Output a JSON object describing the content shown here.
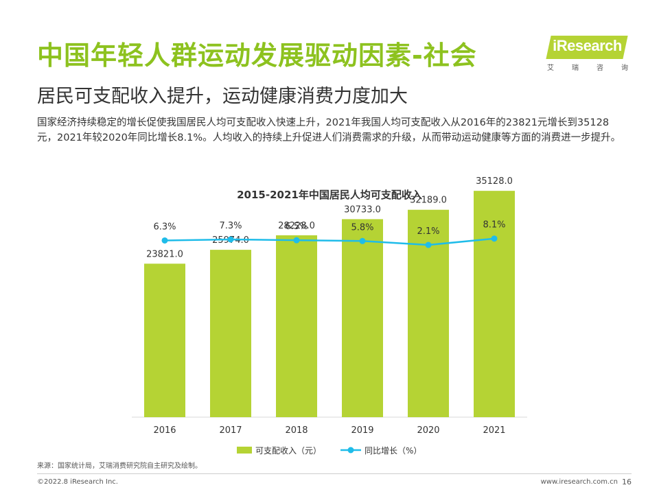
{
  "page": {
    "title": "中国年轻人群运动发展驱动因素-社会",
    "subtitle": "居民可支配收入提升，运动健康消费力度加大",
    "body": "国家经济持续稳定的增长促使我国居民人均可支配收入快速上升，2021年我国人均可支配收入从2016年的23821元增长到35128元，2021年较2020年同比增长8.1%。人均收入的持续上升促进人们消费需求的升级，从而带动运动健康等方面的消费进一步提升。",
    "source": "来源：国家统计局，艾瑞消费研究院自主研究及绘制。",
    "copyright": "©2022.8 iResearch Inc.",
    "website": "www.iresearch.com.cn",
    "page_number": "16"
  },
  "logo": {
    "name": "iResearch",
    "sub": [
      "艾",
      "瑞",
      "咨",
      "询"
    ]
  },
  "chart_data": {
    "type": "bar",
    "title": "2015-2021年中国居民人均可支配收入",
    "categories": [
      "2016",
      "2017",
      "2018",
      "2019",
      "2020",
      "2021"
    ],
    "series": [
      {
        "name": "可支配收入（元）",
        "type": "bar",
        "values": [
          23821.0,
          25974.0,
          28228.0,
          30733.0,
          32189.0,
          35128.0
        ],
        "labels": [
          "23821.0",
          "25974.0",
          "28228.0",
          "30733.0",
          "32189.0",
          "35128.0"
        ],
        "color": "#b5d334"
      },
      {
        "name": "同比增长（%）",
        "type": "line",
        "values": [
          6.3,
          7.3,
          6.5,
          5.8,
          2.1,
          8.1
        ],
        "labels": [
          "6.3%",
          "7.3%",
          "6.5%",
          "5.8%",
          "2.1%",
          "8.1%"
        ],
        "color": "#1fbce9"
      }
    ],
    "legend_position": "bottom",
    "grid": false
  }
}
